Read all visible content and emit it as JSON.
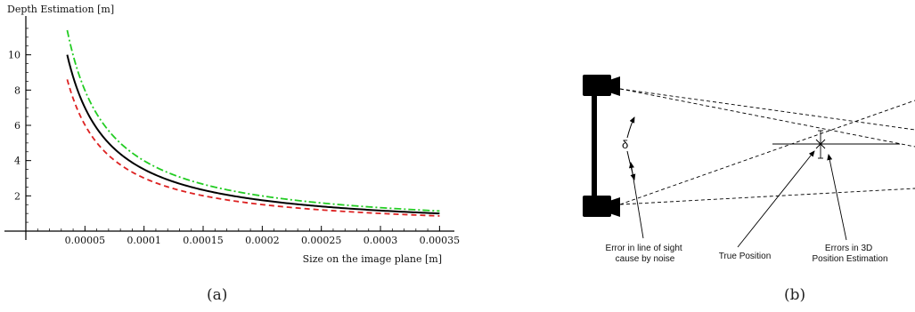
{
  "chart_data": {
    "type": "line",
    "ylabel": "Depth Estimation [m]",
    "xlabel": "Size on the image plane [m]",
    "xlim": [
      0.0,
      0.000355
    ],
    "ylim": [
      0,
      12
    ],
    "xticks": [
      5e-05,
      0.0001,
      0.00015,
      0.0002,
      0.00025,
      0.0003,
      0.00035
    ],
    "xtick_labels": [
      "0.00005",
      "0.0001",
      "0.00015",
      "0.0002",
      "0.00025",
      "0.0003",
      "0.00035"
    ],
    "yticks": [
      2,
      4,
      6,
      8,
      10
    ],
    "ytick_labels": [
      "2",
      "4",
      "6",
      "8",
      "10"
    ],
    "grid": false,
    "legend": "none",
    "x": [
      3.5e-05,
      4e-05,
      5e-05,
      6e-05,
      7e-05,
      8e-05,
      0.0001,
      0.00012,
      0.00015,
      0.00018,
      0.0002,
      0.00025,
      0.0003,
      0.00035
    ],
    "series": [
      {
        "style": "dash-dot",
        "color": "#22cc22",
        "values": [
          11.4,
          10.0,
          8.0,
          6.67,
          5.71,
          5.0,
          4.0,
          3.33,
          2.67,
          2.22,
          2.0,
          1.6,
          1.33,
          1.14
        ]
      },
      {
        "style": "solid",
        "color": "#000000",
        "values": [
          10.0,
          8.75,
          7.0,
          5.83,
          5.0,
          4.38,
          3.5,
          2.92,
          2.33,
          1.94,
          1.75,
          1.4,
          1.17,
          1.0
        ]
      },
      {
        "style": "dashed",
        "color": "#dd2222",
        "values": [
          8.6,
          7.5,
          6.0,
          5.0,
          4.29,
          3.75,
          3.0,
          2.5,
          2.0,
          1.67,
          1.5,
          1.2,
          1.0,
          0.86
        ]
      }
    ]
  },
  "captions": {
    "left": "(a)",
    "right": "(b)"
  },
  "diagram": {
    "delta_symbol": "δ",
    "labels": {
      "error_line_of_sight_1": "Error in line of sight",
      "error_line_of_sight_2": "cause by noise",
      "true_position": "True Position",
      "errors_3d_1": "Errors in 3D",
      "errors_3d_2": "Position Estimation"
    }
  }
}
